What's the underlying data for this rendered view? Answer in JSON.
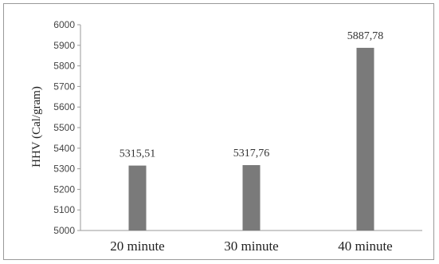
{
  "chart_data": {
    "type": "bar",
    "categories": [
      "20 minute",
      "30 minute",
      "40 minute"
    ],
    "values": [
      5315.51,
      5317.76,
      5887.78
    ],
    "data_labels": [
      "5315,51",
      "5317,76",
      "5887,78"
    ],
    "title": "",
    "xlabel": "",
    "ylabel": "HHV (Cal/gram)",
    "ylim": [
      5000,
      6000
    ],
    "yticks": [
      5000,
      5100,
      5200,
      5300,
      5400,
      5500,
      5600,
      5700,
      5800,
      5900,
      6000
    ],
    "grid": false,
    "legend": "none",
    "bar_color": "#7a7a7a",
    "axis_color": "#9a9a9a"
  }
}
